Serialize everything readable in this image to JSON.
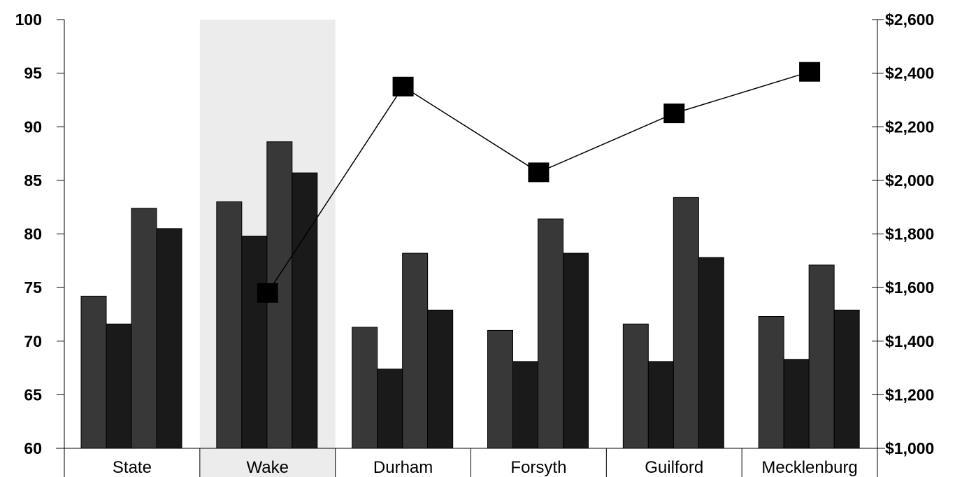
{
  "chart_data": {
    "type": "bar",
    "categories": [
      "State",
      "Wake",
      "Durham",
      "Forsyth",
      "Guilford",
      "Mecklenburg"
    ],
    "highlight_category": "Wake",
    "highlight_color": "#ececec",
    "y_left": {
      "min": 60,
      "max": 100,
      "step": 5,
      "ticks": [
        "60",
        "65",
        "70",
        "75",
        "80",
        "85",
        "90",
        "95",
        "100"
      ]
    },
    "y_right": {
      "min": 1000,
      "max": 2600,
      "step": 200,
      "ticks": [
        "$1,000",
        "$1,200",
        "$1,400",
        "$1,600",
        "$1,800",
        "$2,000",
        "$2,200",
        "$2,400",
        "$2,600"
      ]
    },
    "bar_series": [
      {
        "values": [
          74.2,
          83.0,
          71.3,
          71.0,
          71.6,
          72.3
        ],
        "color": "#383838"
      },
      {
        "values": [
          71.6,
          79.8,
          67.4,
          68.1,
          68.1,
          68.3
        ],
        "color": "#1a1a1a"
      },
      {
        "values": [
          82.4,
          88.6,
          78.2,
          81.4,
          83.4,
          77.1
        ],
        "color": "#383838"
      },
      {
        "values": [
          80.5,
          85.7,
          72.9,
          78.2,
          77.8,
          72.9
        ],
        "color": "#1a1a1a"
      }
    ],
    "line_series": {
      "axis": "right",
      "color": "#000000",
      "marker": "square",
      "values": [
        null,
        1580,
        2350,
        2030,
        2250,
        2405
      ]
    }
  }
}
